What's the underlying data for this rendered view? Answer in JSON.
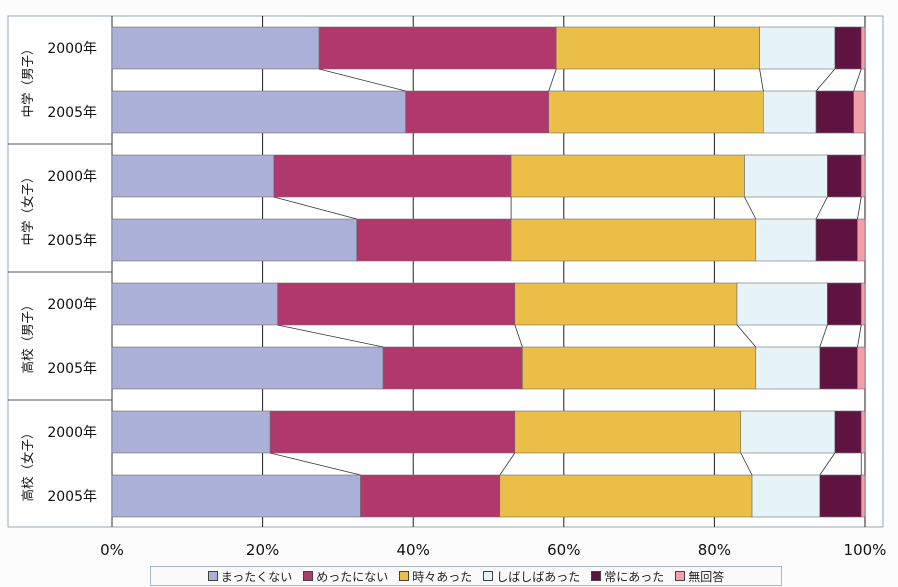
{
  "chart_data": {
    "type": "bar",
    "orientation": "horizontal",
    "stacked": true,
    "normalized": true,
    "groups": [
      {
        "label": "中学（男子）",
        "rows": [
          {
            "label": "2000年",
            "values": [
              27.5,
              31.5,
              27.0,
              10.0,
              3.5,
              0.5
            ]
          },
          {
            "label": "2005年",
            "values": [
              39.0,
              19.0,
              28.5,
              7.0,
              5.0,
              1.5
            ]
          }
        ]
      },
      {
        "label": "中学（女子）",
        "rows": [
          {
            "label": "2000年",
            "values": [
              21.5,
              31.5,
              31.0,
              11.0,
              4.5,
              0.5
            ]
          },
          {
            "label": "2005年",
            "values": [
              32.5,
              20.5,
              32.5,
              8.0,
              5.5,
              1.0
            ]
          }
        ]
      },
      {
        "label": "高校（男子）",
        "rows": [
          {
            "label": "2000年",
            "values": [
              22.0,
              31.5,
              29.5,
              12.0,
              4.5,
              0.5
            ]
          },
          {
            "label": "2005年",
            "values": [
              36.0,
              18.5,
              31.0,
              8.5,
              5.0,
              1.0
            ]
          }
        ]
      },
      {
        "label": "高校（女子）",
        "rows": [
          {
            "label": "2000年",
            "values": [
              21.0,
              32.5,
              30.0,
              12.5,
              3.5,
              0.5
            ]
          },
          {
            "label": "2005年",
            "values": [
              33.0,
              18.5,
              33.5,
              9.0,
              5.5,
              0.5
            ]
          }
        ]
      }
    ],
    "series": [
      {
        "name": "まったくない",
        "color": "#aab0d8"
      },
      {
        "name": "めったにない",
        "color": "#b0386c"
      },
      {
        "name": "時々あった",
        "color": "#ebbe47"
      },
      {
        "name": "しばしばあった",
        "color": "#e6f4f8"
      },
      {
        "name": "常にあった",
        "color": "#5e1340"
      },
      {
        "name": "無回答",
        "color": "#f0a0a6"
      }
    ],
    "x_ticks": [
      "0%",
      "20%",
      "40%",
      "60%",
      "80%",
      "100%"
    ],
    "xlim": [
      0,
      100
    ],
    "grid": true,
    "legend_position": "bottom"
  }
}
